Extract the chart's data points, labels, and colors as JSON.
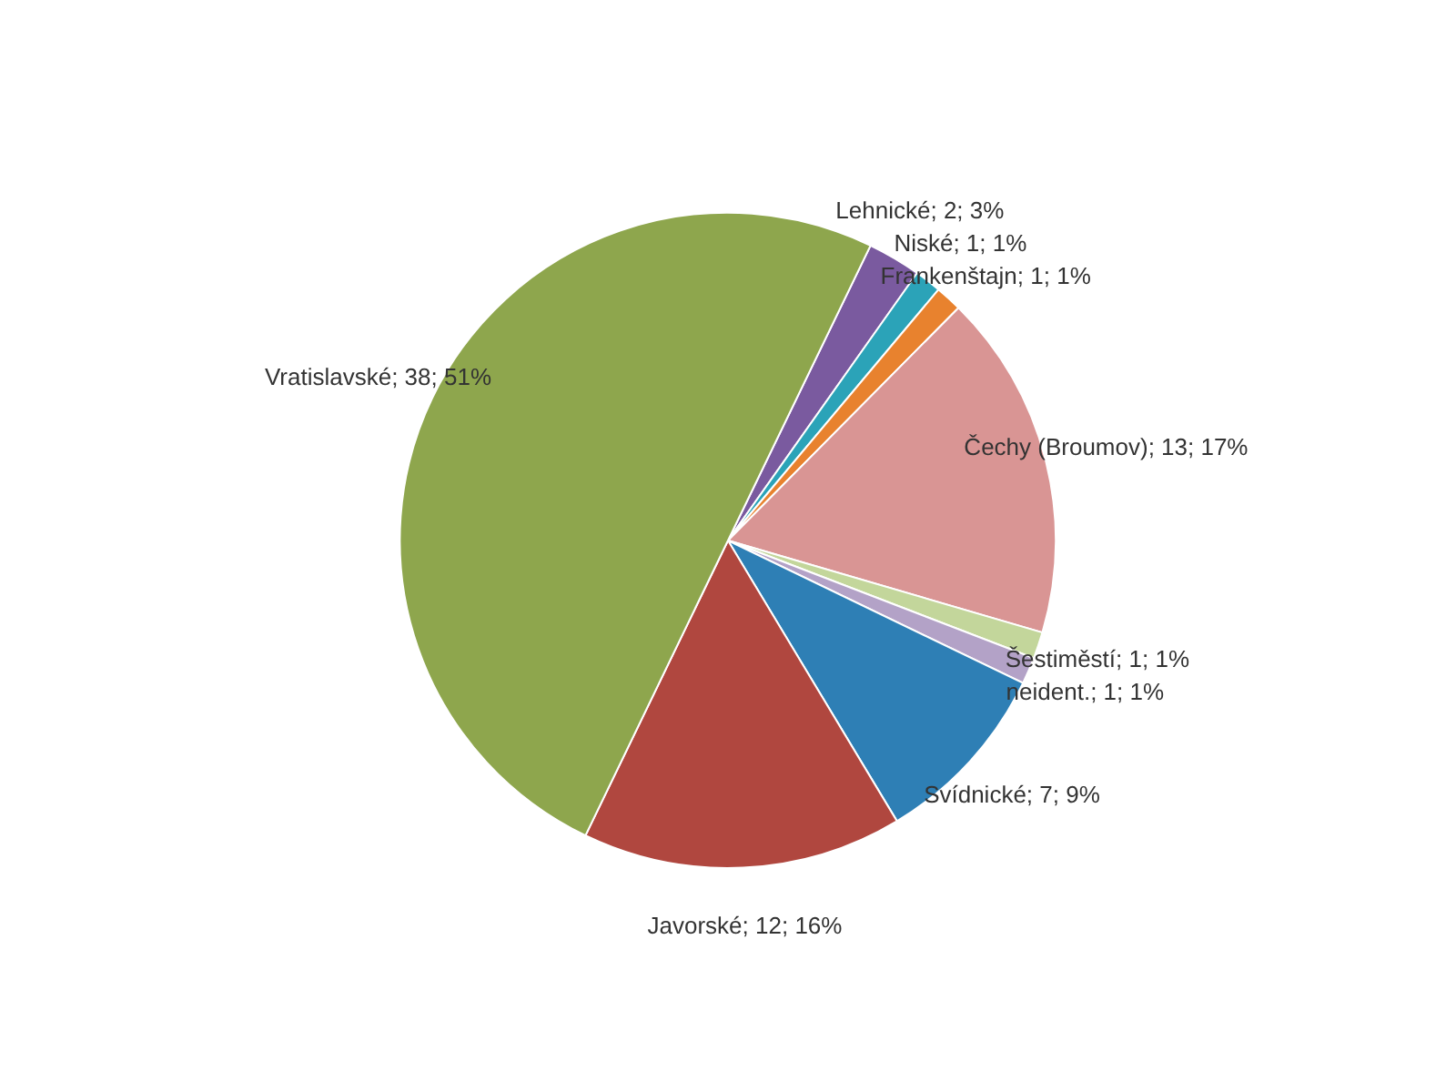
{
  "chart_data": {
    "type": "pie",
    "categories": [
      "Lehnické",
      "Niské",
      "Frankenštajn",
      "Čechy (Broumov)",
      "Šestiměstí",
      "neident.",
      "Svídnické",
      "Javorské",
      "Vratislavské"
    ],
    "values": [
      2,
      1,
      1,
      13,
      1,
      1,
      7,
      12,
      38
    ],
    "value_labels": [
      "2; 3%",
      "1; 1%",
      "1; 1%",
      "13; 17%",
      "1; 1%",
      "1; 1%",
      "7; 9%",
      "12; 16%",
      "38; 51%"
    ],
    "colors": [
      "#7a5a9f",
      "#2ba3b8",
      "#e8822e",
      "#d99594",
      "#c3d69b",
      "#b3a2c7",
      "#2e7fb5",
      "#b0473f",
      "#8ea64d"
    ]
  }
}
